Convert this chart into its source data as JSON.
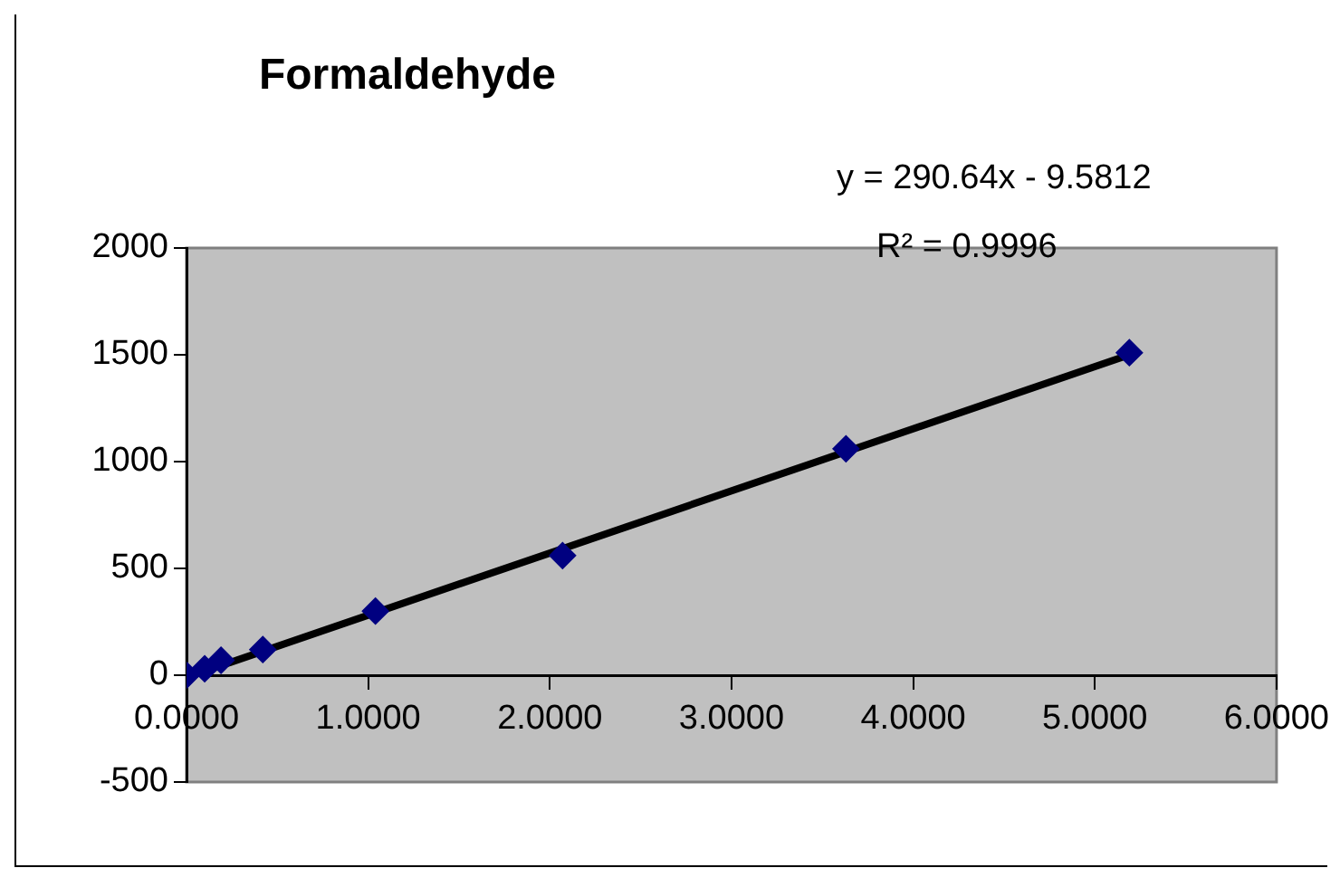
{
  "chart_data": {
    "type": "scatter",
    "title": "Formaldehyde",
    "annotations": [
      "y = 290.64x - 9.5812",
      "R² = 0.9996"
    ],
    "series": [
      {
        "color": "#000080",
        "marker": "diamond",
        "x": [
          0,
          0.1,
          0.19,
          0.42,
          1.04,
          2.07,
          3.63,
          5.19
        ],
        "values": [
          0,
          30,
          70,
          120,
          300,
          560,
          1060,
          1510
        ]
      },
      {
        "type": "line",
        "marker": "none",
        "color": "#000000",
        "x": [
          0,
          5.19
        ],
        "values": [
          -10,
          1500
        ]
      }
    ],
    "xlim": [
      0,
      6
    ],
    "xticks": [
      {
        "value": 0,
        "label": "0.0000"
      },
      {
        "value": 1,
        "label": "1.0000"
      },
      {
        "value": 2,
        "label": "2.0000"
      },
      {
        "value": 3,
        "label": "3.0000"
      },
      {
        "value": 4,
        "label": "4.0000"
      },
      {
        "value": 5,
        "label": "5.0000"
      },
      {
        "value": 6,
        "label": "6.0000"
      }
    ],
    "ylim": [
      -500,
      2000
    ],
    "yticks": [
      -500,
      0,
      500,
      1000,
      1500,
      2000
    ],
    "grid": false,
    "legend": false
  }
}
